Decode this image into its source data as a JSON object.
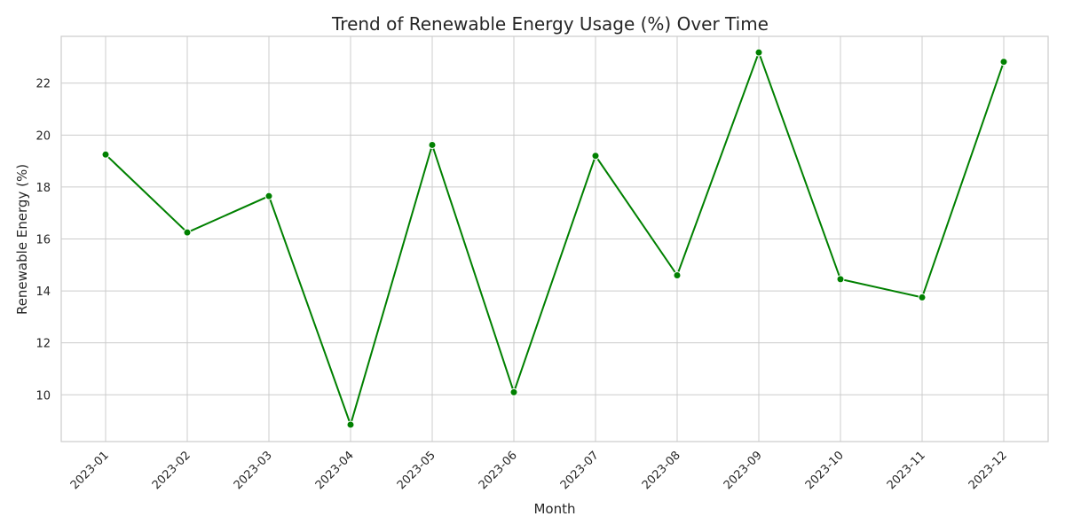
{
  "chart_data": {
    "type": "line",
    "title": "Trend of Renewable Energy Usage (%) Over Time",
    "xlabel": "Month",
    "ylabel": "Renewable Energy (%)",
    "categories": [
      "2023-01",
      "2023-02",
      "2023-03",
      "2023-04",
      "2023-05",
      "2023-06",
      "2023-07",
      "2023-08",
      "2023-09",
      "2023-10",
      "2023-11",
      "2023-12"
    ],
    "series": [
      {
        "values": [
          19.25,
          16.25,
          17.65,
          8.85,
          19.62,
          10.1,
          19.2,
          14.6,
          23.18,
          14.45,
          13.75,
          22.82
        ]
      }
    ],
    "ylim": [
      8.2,
      23.8
    ],
    "yticks": [
      10,
      12,
      14,
      16,
      18,
      20,
      22
    ],
    "grid": true,
    "colors": {
      "line": "#008000",
      "marker": "#008000",
      "grid": "#cccccc"
    }
  }
}
